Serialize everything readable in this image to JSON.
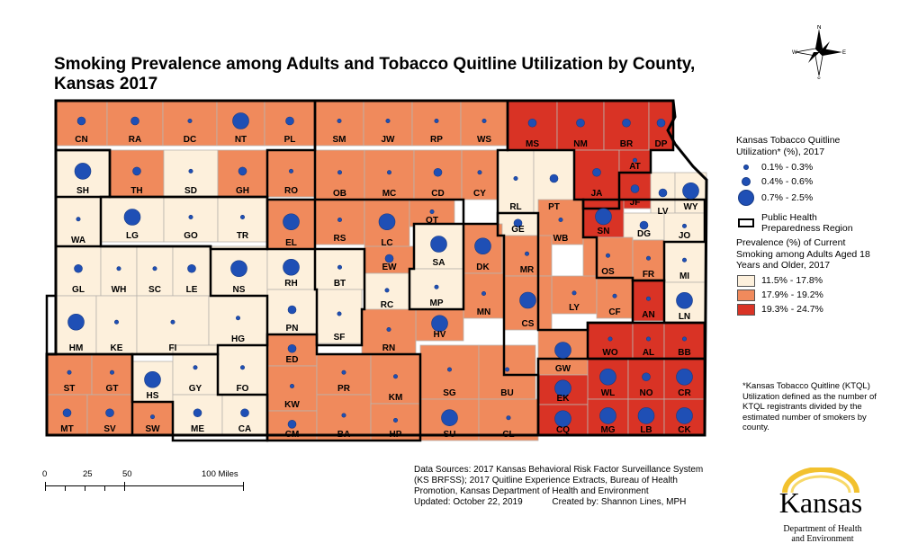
{
  "title": "Smoking Prevalence among Adults and Tobacco Quitline Utilization by County, Kansas 2017",
  "title_line1": "Smoking Prevalence among Adults and Tobacco Quitline Utilization by County,",
  "title_line2": "Kansas 2017",
  "colors": {
    "low": "#fdf0dc",
    "mid": "#f08a5c",
    "high": "#d93325",
    "dot": "#1f4fb5"
  },
  "legend": {
    "quitline_title": "Kansas Tobacco Quitline Utilization* (%), 2017",
    "quitline_title_l1": "Kansas Tobacco Quitline",
    "quitline_title_l2": "Utilization* (%), 2017",
    "quitline_classes": [
      "0.1% - 0.3%",
      "0.4% - 0.6%",
      "0.7% - 2.5%"
    ],
    "phr_label_l1": "Public Health",
    "phr_label_l2": "Preparedness Region",
    "prev_title_l1": "Prevalence (%) of Current",
    "prev_title_l2": "Smoking among Adults Aged 18",
    "prev_title_l3": "Years and Older, 2017",
    "prev_classes": [
      "11.5% - 17.8%",
      "17.9% - 19.2%",
      "19.3% - 24.7%"
    ]
  },
  "footnote": "*Kansas Tobacco Quitline (KTQL) Utilization defined as the number of KTQL registrants divided by the estimated number of smokers by county.",
  "sources": {
    "line1": "Data Sources: 2017 Kansas Behavioral Risk Factor Surveillance System",
    "line2": "(KS BRFSS); 2017 Quitline Experience Extracts, Bureau of Health",
    "line3": "Promotion, Kansas Department of Health and Environment",
    "line4": "Updated: October 22, 2019",
    "created": "Created by: Shannon Lines, MPH"
  },
  "scale": {
    "labels": [
      "0",
      "25",
      "50",
      "100 Miles"
    ]
  },
  "compass": {
    "n": "N",
    "s": "S",
    "e": "E",
    "w": "W"
  },
  "logo": {
    "name": "Kansas",
    "sub1": "Department of Health",
    "sub2": "and Environment"
  },
  "counties": [
    {
      "id": "CN",
      "prev": 1,
      "dot": 1
    },
    {
      "id": "RA",
      "prev": 1,
      "dot": 1
    },
    {
      "id": "DC",
      "prev": 1,
      "dot": 0
    },
    {
      "id": "NT",
      "prev": 1,
      "dot": 2
    },
    {
      "id": "PL",
      "prev": 1,
      "dot": 1
    },
    {
      "id": "SM",
      "prev": 1,
      "dot": 0
    },
    {
      "id": "JW",
      "prev": 1,
      "dot": 0
    },
    {
      "id": "RP",
      "prev": 1,
      "dot": 0
    },
    {
      "id": "WS",
      "prev": 1,
      "dot": 0
    },
    {
      "id": "MS",
      "prev": 2,
      "dot": 1
    },
    {
      "id": "NM",
      "prev": 2,
      "dot": 1
    },
    {
      "id": "BR",
      "prev": 2,
      "dot": 1
    },
    {
      "id": "DP",
      "prev": 2,
      "dot": 1
    },
    {
      "id": "SH",
      "prev": 0,
      "dot": 2
    },
    {
      "id": "TH",
      "prev": 1,
      "dot": 1
    },
    {
      "id": "SD",
      "prev": 0,
      "dot": 0
    },
    {
      "id": "GH",
      "prev": 1,
      "dot": 1
    },
    {
      "id": "RO",
      "prev": 1,
      "dot": 0
    },
    {
      "id": "OB",
      "prev": 1,
      "dot": 0
    },
    {
      "id": "MC",
      "prev": 1,
      "dot": 0
    },
    {
      "id": "CD",
      "prev": 1,
      "dot": 1
    },
    {
      "id": "CY",
      "prev": 1,
      "dot": 0
    },
    {
      "id": "RL",
      "prev": 0,
      "dot": 0
    },
    {
      "id": "PT",
      "prev": 0,
      "dot": 1
    },
    {
      "id": "JA",
      "prev": 2,
      "dot": 1
    },
    {
      "id": "AT",
      "prev": 2,
      "dot": 0
    },
    {
      "id": "JF",
      "prev": 2,
      "dot": 1
    },
    {
      "id": "LV",
      "prev": 0,
      "dot": 1
    },
    {
      "id": "WY",
      "prev": 0,
      "dot": 2
    },
    {
      "id": "WA",
      "prev": 0,
      "dot": 0
    },
    {
      "id": "LG",
      "prev": 0,
      "dot": 2
    },
    {
      "id": "GO",
      "prev": 0,
      "dot": 0
    },
    {
      "id": "TR",
      "prev": 0,
      "dot": 0
    },
    {
      "id": "EL",
      "prev": 1,
      "dot": 2
    },
    {
      "id": "RS",
      "prev": 1,
      "dot": 0
    },
    {
      "id": "LC",
      "prev": 1,
      "dot": 2
    },
    {
      "id": "OT",
      "prev": 1,
      "dot": 0
    },
    {
      "id": "GE",
      "prev": 0,
      "dot": 1
    },
    {
      "id": "WB",
      "prev": 1,
      "dot": 0
    },
    {
      "id": "SN",
      "prev": 2,
      "dot": 2
    },
    {
      "id": "DG",
      "prev": 0,
      "dot": 1
    },
    {
      "id": "JO",
      "prev": 0,
      "dot": 0
    },
    {
      "id": "GL",
      "prev": 0,
      "dot": 1
    },
    {
      "id": "WH",
      "prev": 0,
      "dot": 0
    },
    {
      "id": "SC",
      "prev": 0,
      "dot": 0
    },
    {
      "id": "LE",
      "prev": 0,
      "dot": 1
    },
    {
      "id": "NS",
      "prev": 0,
      "dot": 2
    },
    {
      "id": "RH",
      "prev": 0,
      "dot": 2
    },
    {
      "id": "EW",
      "prev": 1,
      "dot": 1
    },
    {
      "id": "SA",
      "prev": 0,
      "dot": 2
    },
    {
      "id": "DK",
      "prev": 1,
      "dot": 2
    },
    {
      "id": "MR",
      "prev": 1,
      "dot": 0
    },
    {
      "id": "OS",
      "prev": 1,
      "dot": 0
    },
    {
      "id": "FR",
      "prev": 1,
      "dot": 0
    },
    {
      "id": "MI",
      "prev": 0,
      "dot": 0
    },
    {
      "id": "BT",
      "prev": 0,
      "dot": 0
    },
    {
      "id": "RC",
      "prev": 0,
      "dot": 0
    },
    {
      "id": "MP",
      "prev": 0,
      "dot": 0
    },
    {
      "id": "LY",
      "prev": 1,
      "dot": 0
    },
    {
      "id": "CF",
      "prev": 1,
      "dot": 0
    },
    {
      "id": "AN",
      "prev": 2,
      "dot": 0
    },
    {
      "id": "LN",
      "prev": 0,
      "dot": 2
    },
    {
      "id": "HM",
      "prev": 0,
      "dot": 2
    },
    {
      "id": "KE",
      "prev": 0,
      "dot": 0
    },
    {
      "id": "FI",
      "prev": 0,
      "dot": 0
    },
    {
      "id": "HG",
      "prev": 0,
      "dot": 0
    },
    {
      "id": "PN",
      "prev": 0,
      "dot": 1
    },
    {
      "id": "SF",
      "prev": 0,
      "dot": 0
    },
    {
      "id": "MN",
      "prev": 1,
      "dot": 0
    },
    {
      "id": "CS",
      "prev": 1,
      "dot": 2
    },
    {
      "id": "HV",
      "prev": 1,
      "dot": 2
    },
    {
      "id": "RN",
      "prev": 1,
      "dot": 0
    },
    {
      "id": "ED",
      "prev": 1,
      "dot": 1
    },
    {
      "id": "WO",
      "prev": 2,
      "dot": 0
    },
    {
      "id": "AL",
      "prev": 2,
      "dot": 0
    },
    {
      "id": "BB",
      "prev": 2,
      "dot": 0
    },
    {
      "id": "ST",
      "prev": 1,
      "dot": 0
    },
    {
      "id": "GT",
      "prev": 1,
      "dot": 0
    },
    {
      "id": "HS",
      "prev": 0,
      "dot": 2
    },
    {
      "id": "GY",
      "prev": 0,
      "dot": 0
    },
    {
      "id": "FO",
      "prev": 0,
      "dot": 0
    },
    {
      "id": "KW",
      "prev": 1,
      "dot": 0
    },
    {
      "id": "PR",
      "prev": 1,
      "dot": 0
    },
    {
      "id": "KM",
      "prev": 1,
      "dot": 0
    },
    {
      "id": "SG",
      "prev": 1,
      "dot": 0
    },
    {
      "id": "BU",
      "prev": 1,
      "dot": 0
    },
    {
      "id": "GW",
      "prev": 1,
      "dot": 2
    },
    {
      "id": "WL",
      "prev": 2,
      "dot": 2
    },
    {
      "id": "NO",
      "prev": 2,
      "dot": 1
    },
    {
      "id": "EK",
      "prev": 2,
      "dot": 2
    },
    {
      "id": "CR",
      "prev": 2,
      "dot": 2
    },
    {
      "id": "MT",
      "prev": 1,
      "dot": 1
    },
    {
      "id": "SV",
      "prev": 1,
      "dot": 1
    },
    {
      "id": "SW",
      "prev": 1,
      "dot": 0
    },
    {
      "id": "ME",
      "prev": 0,
      "dot": 1
    },
    {
      "id": "CA",
      "prev": 0,
      "dot": 1
    },
    {
      "id": "CM",
      "prev": 1,
      "dot": 1
    },
    {
      "id": "BA",
      "prev": 1,
      "dot": 0
    },
    {
      "id": "HP",
      "prev": 1,
      "dot": 0
    },
    {
      "id": "SU",
      "prev": 1,
      "dot": 2
    },
    {
      "id": "CL",
      "prev": 1,
      "dot": 0
    },
    {
      "id": "CQ",
      "prev": 2,
      "dot": 2
    },
    {
      "id": "MG",
      "prev": 2,
      "dot": 2
    },
    {
      "id": "LB",
      "prev": 2,
      "dot": 2
    },
    {
      "id": "CK",
      "prev": 2,
      "dot": 2
    }
  ]
}
